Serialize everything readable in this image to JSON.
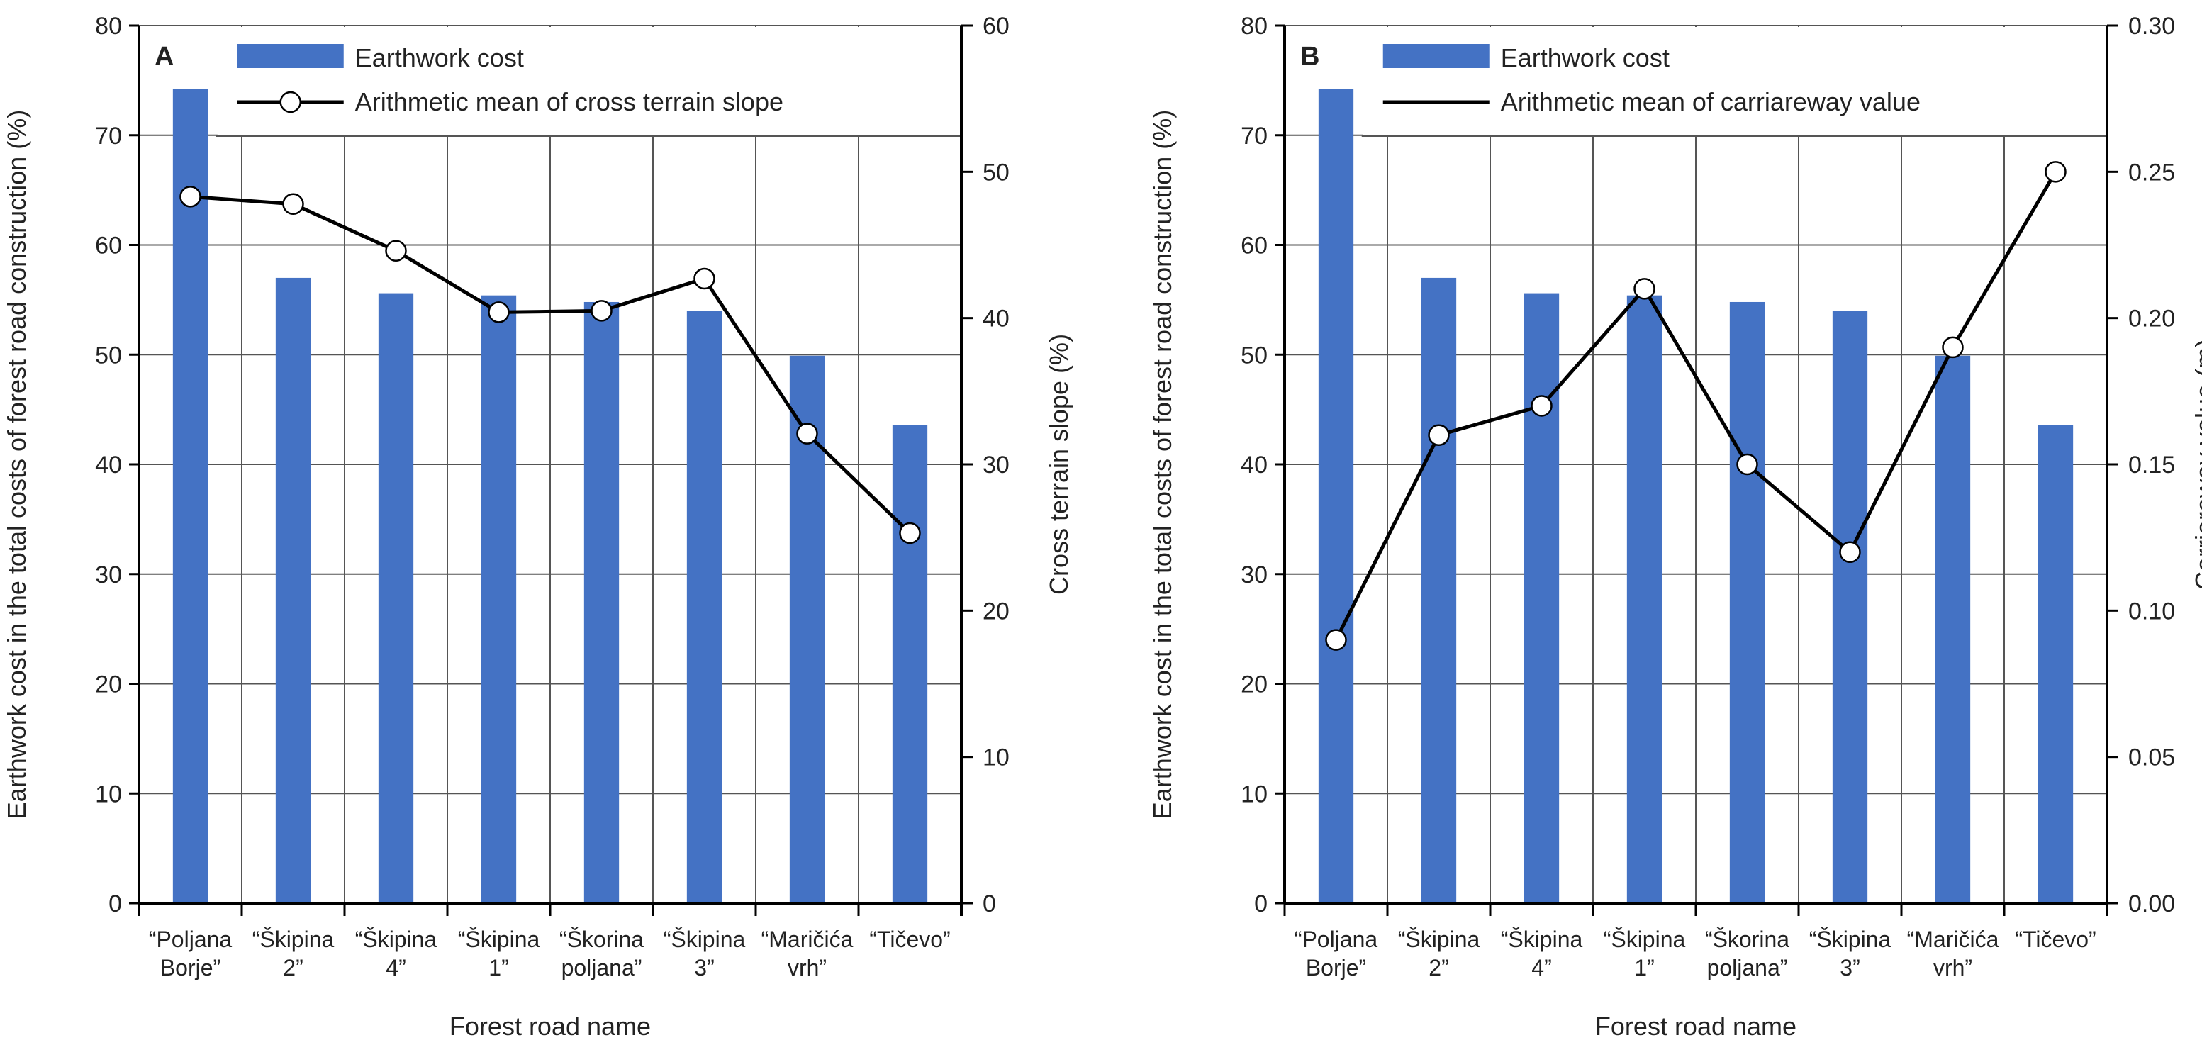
{
  "colors": {
    "bar": "#4472C4",
    "line": "#000000",
    "marker_fill": "#ffffff",
    "grid": "#555555"
  },
  "chart_data": [
    {
      "type": "bar+line",
      "panel_label": "A",
      "xlabel": "Forest road name",
      "ylabel": "Earthwork cost in the total costs of forest road construction (%)",
      "y2label": "Cross terrain slope (%)",
      "ylim": [
        0,
        80
      ],
      "y2lim": [
        0,
        60
      ],
      "yticks": [
        "0",
        "10",
        "20",
        "30",
        "40",
        "50",
        "60",
        "70",
        "80"
      ],
      "y2ticks": [
        "0",
        "10",
        "20",
        "30",
        "40",
        "50",
        "60"
      ],
      "grid": true,
      "legend_placement": "top",
      "categories": [
        [
          "“Poljana",
          "Borje”"
        ],
        [
          "“Škipina",
          "2”"
        ],
        [
          "“Škipina",
          "4”"
        ],
        [
          "“Škipina",
          "1”"
        ],
        [
          "“Škorina",
          "poljana”"
        ],
        [
          "“Škipina",
          "3”"
        ],
        [
          "“Maričića",
          "vrh”"
        ],
        [
          "“Tičevo”",
          ""
        ]
      ],
      "series": [
        {
          "name": "Earthwork cost",
          "type": "bar",
          "axis": "left",
          "values": [
            74.2,
            57.0,
            55.6,
            55.4,
            54.8,
            54.0,
            49.9,
            43.6
          ]
        },
        {
          "name": "Arithmetic mean of cross terrain slope",
          "type": "line",
          "axis": "right",
          "marker": "circle",
          "values": [
            48.3,
            47.8,
            44.6,
            40.4,
            40.5,
            42.7,
            32.1,
            25.3
          ]
        }
      ]
    },
    {
      "type": "bar+line",
      "panel_label": "B",
      "xlabel": "Forest road name",
      "ylabel": "Earthwork cost in the total costs of forest road construction (%)",
      "y2label": "Carriareway value (m)",
      "ylim": [
        0,
        80
      ],
      "y2lim": [
        0,
        0.3
      ],
      "yticks": [
        "0",
        "10",
        "20",
        "30",
        "40",
        "50",
        "60",
        "70",
        "80"
      ],
      "y2ticks": [
        "0.00",
        "0.05",
        "0.10",
        "0.15",
        "0.20",
        "0.25",
        "0.30"
      ],
      "grid": true,
      "legend_placement": "top",
      "categories": [
        [
          "“Poljana",
          "Borje”"
        ],
        [
          "“Škipina",
          "2”"
        ],
        [
          "“Škipina",
          "4”"
        ],
        [
          "“Škipina",
          "1”"
        ],
        [
          "“Škorina",
          "poljana”"
        ],
        [
          "“Škipina",
          "3”"
        ],
        [
          "“Maričića",
          "vrh”"
        ],
        [
          "“Tičevo”",
          ""
        ]
      ],
      "series": [
        {
          "name": "Earthwork cost",
          "type": "bar",
          "axis": "left",
          "values": [
            74.2,
            57.0,
            55.6,
            55.4,
            54.8,
            54.0,
            49.9,
            43.6
          ]
        },
        {
          "name": "Arithmetic mean of carriareway value",
          "type": "line",
          "axis": "right",
          "marker": "circle",
          "legend_marker": false,
          "values": [
            0.09,
            0.16,
            0.17,
            0.21,
            0.15,
            0.12,
            0.19,
            0.25
          ]
        }
      ]
    }
  ]
}
